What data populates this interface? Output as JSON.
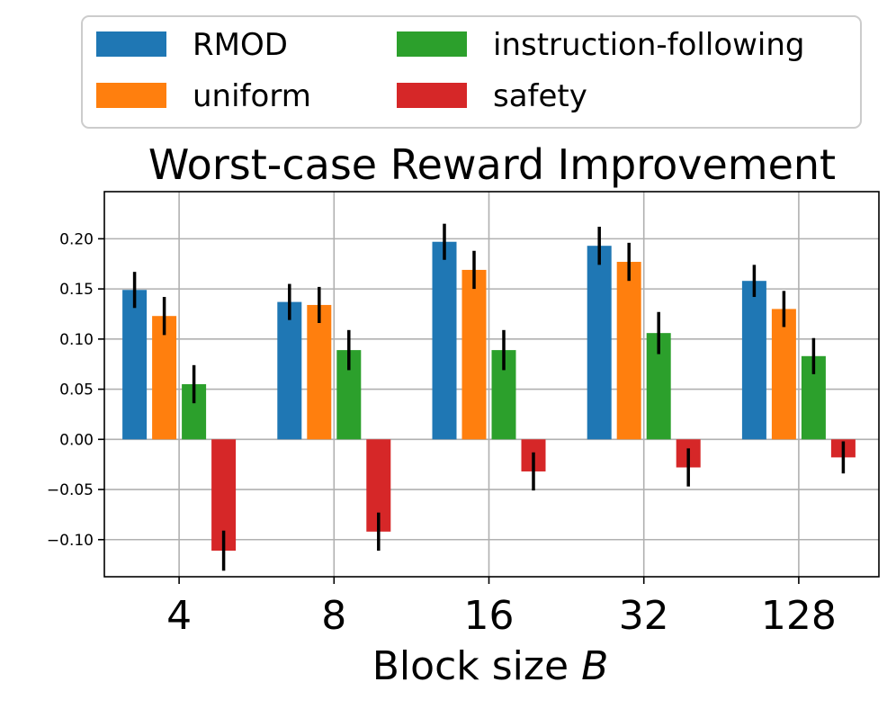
{
  "chart_data": {
    "type": "bar",
    "title": "Worst-case Reward Improvement",
    "xlabel": "Block size",
    "xlabel_var": "B",
    "ylabel": "",
    "categories": [
      "4",
      "8",
      "16",
      "32",
      "128"
    ],
    "ylim": [
      -0.137,
      0.247
    ],
    "yticks": [
      {
        "value": 0.2,
        "label": "0.20"
      },
      {
        "value": 0.15,
        "label": "0.15"
      },
      {
        "value": 0.1,
        "label": "0.10"
      },
      {
        "value": 0.05,
        "label": "0.05"
      },
      {
        "value": 0.0,
        "label": "0.00"
      },
      {
        "value": -0.05,
        "label": "−0.05"
      },
      {
        "value": -0.1,
        "label": "−0.10"
      }
    ],
    "grid": true,
    "legend_position": "top",
    "series": [
      {
        "name": "RMOD",
        "color": "#1f77b4",
        "values": [
          0.149,
          0.137,
          0.197,
          0.193,
          0.158
        ],
        "errors": [
          0.018,
          0.018,
          0.018,
          0.019,
          0.016
        ]
      },
      {
        "name": "uniform",
        "color": "#ff7f0e",
        "values": [
          0.123,
          0.134,
          0.169,
          0.177,
          0.13
        ],
        "errors": [
          0.019,
          0.018,
          0.019,
          0.019,
          0.018
        ]
      },
      {
        "name": "instruction-following",
        "color": "#2ca02c",
        "values": [
          0.055,
          0.089,
          0.089,
          0.106,
          0.083
        ],
        "errors": [
          0.019,
          0.02,
          0.02,
          0.021,
          0.018
        ]
      },
      {
        "name": "safety",
        "color": "#d62728",
        "values": [
          -0.111,
          -0.092,
          -0.032,
          -0.028,
          -0.018
        ],
        "errors": [
          0.02,
          0.019,
          0.019,
          0.019,
          0.016
        ]
      }
    ]
  }
}
